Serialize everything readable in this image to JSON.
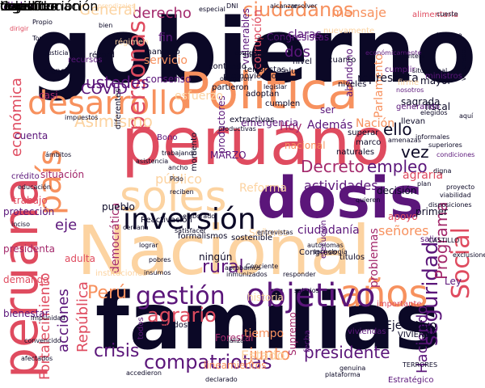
{
  "palette": {
    "darkest": "#0b0826",
    "purple": "#5b167a",
    "magenta": "#a3286b",
    "red": "#df4b5f",
    "orange": "#f7915e",
    "peach": "#fcd3a1",
    "cream": "#fdecc8"
  },
  "words": [
    {
      "text": "gobierno",
      "color": "#0b0826"
    },
    {
      "text": "familias",
      "color": "#0b0826"
    },
    {
      "text": "peruano",
      "color": "#df4b5f"
    },
    {
      "text": "Nacional",
      "color": "#fcd3a1"
    },
    {
      "text": "peruana",
      "color": "#df4b5f"
    },
    {
      "text": "dosis",
      "color": "#5b167a"
    },
    {
      "text": "Política",
      "color": "#f7915e"
    },
    {
      "text": "soles",
      "color": "#fcd3a1"
    },
    {
      "text": "país",
      "color": "#f7915e"
    },
    {
      "text": "desarrollo",
      "color": "#f7915e"
    },
    {
      "text": "años",
      "color": "#f7915e"
    },
    {
      "text": "objetivo",
      "color": "#5b167a"
    },
    {
      "text": "inversión",
      "color": "#0b0826"
    },
    {
      "text": "gestión",
      "color": "#5b167a"
    },
    {
      "text": "Social",
      "color": "#df4b5f"
    },
    {
      "text": "personas",
      "color": "#df4b5f"
    },
    {
      "text": "seguridad",
      "color": "#5b167a"
    },
    {
      "text": "compatriotas",
      "color": "#5b167a"
    },
    {
      "text": "ciudadanos",
      "color": "#f7915e"
    },
    {
      "text": "Perú",
      "color": "#f7915e"
    },
    {
      "text": "agrario",
      "color": "#df4b5f"
    },
    {
      "text": "crisis",
      "color": "#5b167a"
    },
    {
      "text": "presidente",
      "color": "#5b167a"
    },
    {
      "text": "junto",
      "color": "#f7915e"
    },
    {
      "text": "Decreto",
      "color": "#a3286b"
    },
    {
      "text": "actividades",
      "color": "#5b167a"
    },
    {
      "text": "Programa",
      "color": "#a3286b"
    },
    {
      "text": "empleo",
      "color": "#5b167a"
    },
    {
      "text": "rural",
      "color": "#5b167a"
    },
    {
      "text": "acciones",
      "color": "#5b167a"
    },
    {
      "text": "República",
      "color": "#df4b5f"
    },
    {
      "text": "ustedes",
      "color": "#5b167a"
    },
    {
      "text": "derecho",
      "color": "#a3286b"
    },
    {
      "text": "General",
      "color": "#fcd3a1"
    },
    {
      "text": "COVID",
      "color": "#5b167a"
    },
    {
      "text": "económica",
      "color": "#df4b5f"
    },
    {
      "text": "Haciendo",
      "color": "#5b167a"
    },
    {
      "text": "Fortalecimiento",
      "color": "#df4b5f"
    },
    {
      "text": "eje",
      "color": "#5b167a"
    },
    {
      "text": "vez",
      "color": "#0b0826"
    },
    {
      "text": "ello",
      "color": "#0b0826"
    },
    {
      "text": "público",
      "color": "#fcd3a1"
    },
    {
      "text": "mensaje",
      "color": "#f7915e"
    },
    {
      "text": "agraria",
      "color": "#df4b5f"
    },
    {
      "text": "ciudadanía",
      "color": "#5b167a"
    },
    {
      "text": "Ley",
      "color": "#5b167a"
    },
    {
      "text": "dos",
      "color": "#5b167a"
    },
    {
      "text": "claras",
      "color": "#5b167a"
    },
    {
      "text": "Hoy",
      "color": "#a3286b"
    },
    {
      "text": "Además",
      "color": "#5b167a"
    },
    {
      "text": "MARZO",
      "color": "#5b167a"
    },
    {
      "text": "Señores",
      "color": "#fcd3a1"
    },
    {
      "text": "señores",
      "color": "#f7915e"
    },
    {
      "text": "Nación",
      "color": "#f7915e"
    },
    {
      "text": "Parlamento",
      "color": "#f7915e"
    },
    {
      "text": "representa",
      "color": "#0b0826"
    },
    {
      "text": "fin",
      "color": "#5b167a"
    },
    {
      "text": "servicio",
      "color": "#f7915e"
    },
    {
      "text": "mayor",
      "color": "#0b0826"
    },
    {
      "text": "fiscal",
      "color": "#0b0826"
    },
    {
      "text": "corrupción",
      "color": "#df4b5f"
    },
    {
      "text": "Asimismo",
      "color": "#fcd3a1"
    },
    {
      "text": "democrática",
      "color": "#a3286b"
    },
    {
      "text": "ningún",
      "color": "#0b0826"
    },
    {
      "text": "títulos",
      "color": "#0b0826"
    },
    {
      "text": "problemas",
      "color": "#a3286b"
    },
    {
      "text": "historia",
      "color": "#fcd3a1"
    },
    {
      "text": "vulnerables",
      "color": "#5b167a"
    },
    {
      "text": "Congresistas",
      "color": "#5b167a"
    },
    {
      "text": "abandono",
      "color": "#5b167a"
    },
    {
      "text": "Ejecutivo",
      "color": "#0b0826"
    },
    {
      "text": "Estado",
      "color": "#fcd3a1"
    },
    {
      "text": "apoyo",
      "color": "#df4b5f"
    },
    {
      "text": "primer",
      "color": "#0b0826"
    },
    {
      "text": "salud",
      "color": "#0b0826"
    },
    {
      "text": "emergencia",
      "color": "#5b167a"
    },
    {
      "text": "nacional",
      "color": "#f7915e"
    },
    {
      "text": "tiempo",
      "color": "#f7915e"
    },
    {
      "text": "Supremo",
      "color": "#a3286b"
    },
    {
      "text": "Forestal",
      "color": "#a3286b"
    },
    {
      "text": "resultados",
      "color": "#0b0826"
    },
    {
      "text": "lineamientos",
      "color": "#f7915e"
    },
    {
      "text": "Estratégico",
      "color": "#5b167a"
    },
    {
      "text": "Reforma",
      "color": "#fcd3a1"
    },
    {
      "text": "presidenta",
      "color": "#a3286b"
    },
    {
      "text": "bienestar",
      "color": "#5b167a"
    },
    {
      "text": "demanda",
      "color": "#df4b5f"
    },
    {
      "text": "trabajo",
      "color": "#df4b5f"
    },
    {
      "text": "pueblo",
      "color": "#0b0826"
    },
    {
      "text": "protección",
      "color": "#5b167a"
    },
    {
      "text": "situación",
      "color": "#a3286b"
    },
    {
      "text": "crédito",
      "color": "#5b167a"
    },
    {
      "text": "cuenta",
      "color": "#5b167a"
    },
    {
      "text": "productores",
      "color": "#5b167a"
    },
    {
      "text": "Reactivación",
      "color": "#0b0826"
    },
    {
      "text": "formalismos",
      "color": "#0b0826"
    },
    {
      "text": "sostenible",
      "color": "#0b0826"
    },
    {
      "text": "Congreso",
      "color": "#0b0826"
    },
    {
      "text": "ejecución",
      "color": "#5b167a"
    },
    {
      "text": "viviendas",
      "color": "#5b167a"
    },
    {
      "text": "VIVIENDA",
      "color": "#0b0826"
    },
    {
      "text": "fecha",
      "color": "#5b167a"
    },
    {
      "text": "todos",
      "color": "#5b167a"
    },
    {
      "text": "instituciones",
      "color": "#fcd3a1"
    },
    {
      "text": "adulta",
      "color": "#df4b5f"
    },
    {
      "text": "salir",
      "color": "#5b167a"
    },
    {
      "text": "importante",
      "color": "#df4b5f"
    },
    {
      "text": "decisión",
      "color": "#0b0826"
    },
    {
      "text": "sagrada",
      "color": "#0b0826"
    },
    {
      "text": "cumplir",
      "color": "#5b167a"
    },
    {
      "text": "esfuerzo",
      "color": "#fcd3a1"
    },
    {
      "text": "consenso",
      "color": "#5b167a"
    },
    {
      "text": "ser",
      "color": "#5b167a"
    },
    {
      "text": "casi",
      "color": "#a3286b"
    },
    {
      "text": "dicho",
      "color": "#5b167a"
    },
    {
      "text": "aprendizajes",
      "color": "#fcd3a1"
    },
    {
      "text": "nuevamente",
      "color": "#fcd3a1"
    },
    {
      "text": "económicamente",
      "color": "#5b167a"
    },
    {
      "text": "alimentaria",
      "color": "#df4b5f"
    },
    {
      "text": "cueste",
      "color": "#0b0826"
    },
    {
      "text": "balance",
      "color": "#0b0826"
    },
    {
      "text": "régimen",
      "color": "#fcd3a1"
    },
    {
      "text": "recursos",
      "color": "#5b167a"
    },
    {
      "text": "récord",
      "color": "#0b0826"
    },
    {
      "text": "mandato",
      "color": "#0b0826"
    },
    {
      "text": "contando",
      "color": "#0b0826"
    },
    {
      "text": "asumimos",
      "color": "#0b0826"
    },
    {
      "text": "silencio",
      "color": "#0b0826"
    },
    {
      "text": "cuanto",
      "color": "#0b0826"
    },
    {
      "text": "niveles",
      "color": "#0b0826"
    },
    {
      "text": "situacional",
      "color": "#0b0826"
    },
    {
      "text": "ministros",
      "color": "#5b167a"
    },
    {
      "text": "vacunados",
      "color": "#0b0826"
    },
    {
      "text": "firme",
      "color": "#fcd3a1"
    },
    {
      "text": "generando",
      "color": "#5b167a"
    },
    {
      "text": "nosotros",
      "color": "#5b167a"
    },
    {
      "text": "adoptan",
      "color": "#0b0826"
    },
    {
      "text": "cumplen",
      "color": "#0b0826"
    },
    {
      "text": "terroristas",
      "color": "#0b0826"
    },
    {
      "text": "partieron",
      "color": "#0b0826"
    },
    {
      "text": "naturales",
      "color": "#0b0826"
    },
    {
      "text": "superar",
      "color": "#0b0826"
    },
    {
      "text": "marco",
      "color": "#0b0826"
    },
    {
      "text": "llevan",
      "color": "#0b0826"
    },
    {
      "text": "promoviendo",
      "color": "#0b0826"
    },
    {
      "text": "nivel",
      "color": "#0b0826"
    },
    {
      "text": "Bono",
      "color": "#5b167a"
    },
    {
      "text": "Pido",
      "color": "#0b0826"
    },
    {
      "text": "momento",
      "color": "#0b0826"
    },
    {
      "text": "reciben",
      "color": "#0b0826"
    },
    {
      "text": "diferentes",
      "color": "#0b0826"
    },
    {
      "text": "ancho",
      "color": "#0b0826"
    },
    {
      "text": "elaborado",
      "color": "#0b0826"
    },
    {
      "text": "entrevistas",
      "color": "#0b0826"
    },
    {
      "text": "quieren",
      "color": "#0b0826"
    },
    {
      "text": "CASTILLO",
      "color": "#0b0826"
    },
    {
      "text": "tecnología",
      "color": "#0b0826"
    },
    {
      "text": "autónomas",
      "color": "#0b0826"
    },
    {
      "text": "satisfacer",
      "color": "#0b0826"
    },
    {
      "text": "lograr",
      "color": "#0b0826"
    },
    {
      "text": "pobres",
      "color": "#0b0826"
    },
    {
      "text": "insumos",
      "color": "#0b0826"
    },
    {
      "text": "aprobamos",
      "color": "#0b0826"
    },
    {
      "text": "inmunizados",
      "color": "#0b0826"
    },
    {
      "text": "responder",
      "color": "#0b0826"
    },
    {
      "text": "salarios",
      "color": "#0b0826"
    },
    {
      "text": "genuina",
      "color": "#0b0826"
    },
    {
      "text": "declarado",
      "color": "#0b0826"
    },
    {
      "text": "impunidad",
      "color": "#0b0826"
    },
    {
      "text": "afectados",
      "color": "#0b0826"
    },
    {
      "text": "accedieron",
      "color": "#0b0826"
    },
    {
      "text": "convencido",
      "color": "#0b0826"
    },
    {
      "text": "fiscalizar",
      "color": "#0b0826"
    },
    {
      "text": "TERRORES",
      "color": "#0b0826"
    },
    {
      "text": "aquí",
      "color": "#0b0826"
    },
    {
      "text": "digna",
      "color": "#0b0826"
    },
    {
      "text": "plan",
      "color": "#0b0826"
    },
    {
      "text": "condiciones",
      "color": "#5b167a"
    },
    {
      "text": "exclusiones",
      "color": "#0b0826"
    },
    {
      "text": "ciencia",
      "color": "#0b0826"
    },
    {
      "text": "amenazas",
      "color": "#0b0826"
    },
    {
      "text": "dirigir",
      "color": "#df4b5f"
    },
    {
      "text": "Tomas",
      "color": "#0b0826"
    },
    {
      "text": "Propio",
      "color": "#0b0826"
    },
    {
      "text": "productivas",
      "color": "#0b0826"
    },
    {
      "text": "extractivas",
      "color": "#0b0826"
    },
    {
      "text": "educación",
      "color": "#0b0826"
    },
    {
      "text": "inciso",
      "color": "#0b0826"
    },
    {
      "text": "ámbitos",
      "color": "#0b0826"
    },
    {
      "text": "legislar",
      "color": "#0b0826"
    },
    {
      "text": "elegidos",
      "color": "#0b0826"
    },
    {
      "text": "trabajando",
      "color": "#0b0826"
    },
    {
      "text": "asistencia",
      "color": "#0b0826"
    },
    {
      "text": "Conciente",
      "color": "#0b0826"
    },
    {
      "text": "plataforma",
      "color": "#0b0826"
    },
    {
      "text": "alcanzar",
      "color": "#0b0826"
    },
    {
      "text": "resolver",
      "color": "#0b0826"
    },
    {
      "text": "DNI",
      "color": "#0b0826"
    },
    {
      "text": "especial",
      "color": "#0b0826"
    },
    {
      "text": "otorgaron",
      "color": "#0b0826"
    },
    {
      "text": "corrigió",
      "color": "#0b0826"
    },
    {
      "text": "justicia",
      "color": "#0b0826"
    },
    {
      "text": "bien",
      "color": "#0b0826"
    },
    {
      "text": "impuestos",
      "color": "#0b0826"
    },
    {
      "text": "informales",
      "color": "#0b0826"
    },
    {
      "text": "superiores",
      "color": "#0b0826"
    },
    {
      "text": "frontera",
      "color": "#0b0826"
    },
    {
      "text": "cercana",
      "color": "#0b0826"
    },
    {
      "text": "viabilidad",
      "color": "#0b0826"
    },
    {
      "text": "disposiciones",
      "color": "#0b0826"
    },
    {
      "text": "proyecto",
      "color": "#0b0826"
    },
    {
      "text": "urgentes",
      "color": "#0b0826"
    },
    {
      "text": "transformación",
      "color": "#0b0826"
    },
    {
      "text": "colectivo",
      "color": "#0b0826"
    },
    {
      "text": "cerca",
      "color": "#0b0826"
    },
    {
      "text": "decidido",
      "color": "#0b0826"
    },
    {
      "text": "legal",
      "color": "#0b0826"
    },
    {
      "text": "Constitución",
      "color": "#0b0826"
    }
  ]
}
